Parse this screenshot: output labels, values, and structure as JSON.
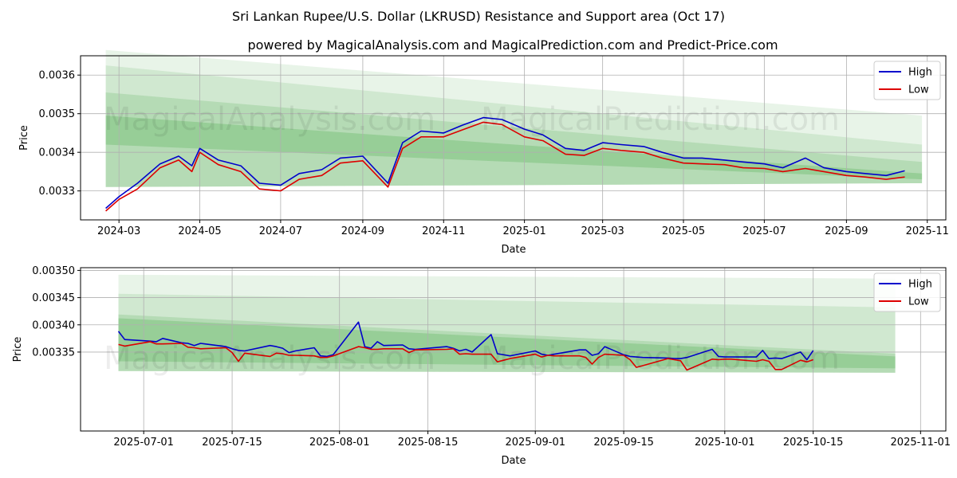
{
  "title": "Sri Lankan Rupee/U.S. Dollar (LKRUSD) Resistance and Support area (Oct 17)",
  "subtitle": "powered by MagicalAnalysis.com and MagicalPrediction.com and Predict-Price.com",
  "watermarks": [
    "MagicalAnalysis.com",
    "MagicalPrediction.com"
  ],
  "colors": {
    "high": "#0000cc",
    "low": "#dd0000",
    "band": "#2e9e2e",
    "grid": "#b0b0b0"
  },
  "chart_data": [
    {
      "type": "line",
      "name": "top-chart",
      "xlabel": "Date",
      "ylabel": "Price",
      "xlim": [
        "2024-02-01",
        "2025-11-15"
      ],
      "ylim": [
        0.003225,
        0.00365
      ],
      "xticks": [
        "2024-03",
        "2024-05",
        "2024-07",
        "2024-09",
        "2024-11",
        "2025-01",
        "2025-03",
        "2025-05",
        "2025-07",
        "2025-09",
        "2025-11"
      ],
      "xtick_dates": [
        "2024-03-01",
        "2024-05-01",
        "2024-07-01",
        "2024-09-01",
        "2024-11-01",
        "2025-01-01",
        "2025-03-01",
        "2025-05-01",
        "2025-07-01",
        "2025-09-01",
        "2025-11-01"
      ],
      "yticks": [
        0.0033,
        0.0034,
        0.0035,
        0.0036
      ],
      "ytick_labels": [
        "0.0033",
        "0.0034",
        "0.0035",
        "0.0036"
      ],
      "legend": {
        "position": "top-right",
        "entries": [
          "High",
          "Low"
        ]
      },
      "bands": [
        {
          "x": [
            "2024-02-20",
            "2025-10-28"
          ],
          "top": [
            0.003665,
            0.003495
          ],
          "bottom": [
            0.00331,
            0.00332
          ],
          "opacity": 0.11
        },
        {
          "x": [
            "2024-02-20",
            "2025-10-28"
          ],
          "top": [
            0.003625,
            0.00342
          ],
          "bottom": [
            0.00331,
            0.00332
          ],
          "opacity": 0.13
        },
        {
          "x": [
            "2024-02-20",
            "2025-10-28"
          ],
          "top": [
            0.003555,
            0.003375
          ],
          "bottom": [
            0.00331,
            0.00332
          ],
          "opacity": 0.16
        },
        {
          "x": [
            "2024-02-20",
            "2025-10-28"
          ],
          "top": [
            0.003495,
            0.003345
          ],
          "bottom": [
            0.00342,
            0.00333
          ],
          "opacity": 0.22
        }
      ],
      "series": [
        {
          "name": "High",
          "color": "#0000cc",
          "x": [
            "2024-02-20",
            "2024-03-01",
            "2024-03-15",
            "2024-04-01",
            "2024-04-15",
            "2024-04-25",
            "2024-05-01",
            "2024-05-15",
            "2024-06-01",
            "2024-06-15",
            "2024-07-01",
            "2024-07-15",
            "2024-08-01",
            "2024-08-15",
            "2024-09-01",
            "2024-09-20",
            "2024-10-01",
            "2024-10-15",
            "2024-11-01",
            "2024-11-15",
            "2024-12-01",
            "2024-12-15",
            "2025-01-01",
            "2025-01-15",
            "2025-02-01",
            "2025-02-15",
            "2025-03-01",
            "2025-03-15",
            "2025-04-01",
            "2025-04-15",
            "2025-05-01",
            "2025-05-15",
            "2025-06-01",
            "2025-06-15",
            "2025-07-01",
            "2025-07-15",
            "2025-08-01",
            "2025-08-15",
            "2025-09-01",
            "2025-09-15",
            "2025-10-01",
            "2025-10-15"
          ],
          "values": [
            0.003255,
            0.003285,
            0.00332,
            0.00337,
            0.00339,
            0.003365,
            0.00341,
            0.00338,
            0.003365,
            0.00332,
            0.003315,
            0.003345,
            0.003355,
            0.003385,
            0.00339,
            0.00332,
            0.003425,
            0.003455,
            0.00345,
            0.00347,
            0.00349,
            0.003485,
            0.00346,
            0.003445,
            0.00341,
            0.003405,
            0.003425,
            0.00342,
            0.003415,
            0.0034,
            0.003385,
            0.003385,
            0.00338,
            0.003375,
            0.00337,
            0.00336,
            0.003385,
            0.00336,
            0.00335,
            0.003345,
            0.00334,
            0.003352
          ]
        },
        {
          "name": "Low",
          "color": "#dd0000",
          "x": [
            "2024-02-20",
            "2024-03-01",
            "2024-03-15",
            "2024-04-01",
            "2024-04-15",
            "2024-04-25",
            "2024-05-01",
            "2024-05-15",
            "2024-06-01",
            "2024-06-15",
            "2024-07-01",
            "2024-07-15",
            "2024-08-01",
            "2024-08-15",
            "2024-09-01",
            "2024-09-20",
            "2024-10-01",
            "2024-10-15",
            "2024-11-01",
            "2024-11-15",
            "2024-12-01",
            "2024-12-15",
            "2025-01-01",
            "2025-01-15",
            "2025-02-01",
            "2025-02-15",
            "2025-03-01",
            "2025-03-15",
            "2025-04-01",
            "2025-04-15",
            "2025-05-01",
            "2025-05-15",
            "2025-06-01",
            "2025-06-15",
            "2025-07-01",
            "2025-07-15",
            "2025-08-01",
            "2025-08-15",
            "2025-09-01",
            "2025-09-15",
            "2025-10-01",
            "2025-10-15"
          ],
          "values": [
            0.003248,
            0.003278,
            0.003305,
            0.00336,
            0.00338,
            0.00335,
            0.0034,
            0.003368,
            0.00335,
            0.003305,
            0.0033,
            0.00333,
            0.00334,
            0.003372,
            0.003378,
            0.00331,
            0.00341,
            0.00344,
            0.00344,
            0.003458,
            0.003478,
            0.003472,
            0.00344,
            0.00343,
            0.003395,
            0.003392,
            0.00341,
            0.003405,
            0.0034,
            0.003385,
            0.003372,
            0.00337,
            0.003368,
            0.00336,
            0.003358,
            0.00335,
            0.003358,
            0.00335,
            0.00334,
            0.003336,
            0.00333,
            0.003336
          ]
        }
      ]
    },
    {
      "type": "line",
      "name": "bottom-chart",
      "xlabel": "Date",
      "ylabel": "Price",
      "xlim": [
        "2025-06-21",
        "2025-11-05"
      ],
      "ylim": [
        0.003205,
        0.003505
      ],
      "xticks": [
        "2025-07-01",
        "2025-07-15",
        "2025-08-01",
        "2025-08-15",
        "2025-09-01",
        "2025-09-15",
        "2025-10-01",
        "2025-10-15",
        "2025-11-01"
      ],
      "xtick_dates": [
        "2025-07-01",
        "2025-07-15",
        "2025-08-01",
        "2025-08-15",
        "2025-09-01",
        "2025-09-15",
        "2025-10-01",
        "2025-10-15",
        "2025-11-01"
      ],
      "yticks": [
        0.00335,
        0.0034,
        0.00345,
        0.0035
      ],
      "ytick_labels": [
        "0.00335",
        "0.00340",
        "0.00345",
        "0.00350"
      ],
      "legend": {
        "position": "top-right",
        "entries": [
          "High",
          "Low"
        ]
      },
      "bands": [
        {
          "x": [
            "2025-06-27",
            "2025-10-28"
          ],
          "top": [
            0.003492,
            0.003485
          ],
          "bottom": [
            0.003315,
            0.003312
          ],
          "opacity": 0.11
        },
        {
          "x": [
            "2025-06-27",
            "2025-10-28"
          ],
          "top": [
            0.003457,
            0.003432
          ],
          "bottom": [
            0.003315,
            0.003312
          ],
          "opacity": 0.13
        },
        {
          "x": [
            "2025-06-27",
            "2025-10-28"
          ],
          "top": [
            0.003419,
            0.003347
          ],
          "bottom": [
            0.003315,
            0.003312
          ],
          "opacity": 0.16
        },
        {
          "x": [
            "2025-06-27",
            "2025-10-28"
          ],
          "top": [
            0.003412,
            0.003342
          ],
          "bottom": [
            0.003333,
            0.00332
          ],
          "opacity": 0.22
        }
      ],
      "series": [
        {
          "name": "High",
          "color": "#0000cc",
          "x": [
            "2025-06-27",
            "2025-06-28",
            "2025-07-02",
            "2025-07-03",
            "2025-07-04",
            "2025-07-07",
            "2025-07-08",
            "2025-07-09",
            "2025-07-10",
            "2025-07-14",
            "2025-07-15",
            "2025-07-16",
            "2025-07-17",
            "2025-07-21",
            "2025-07-22",
            "2025-07-23",
            "2025-07-24",
            "2025-07-25",
            "2025-07-28",
            "2025-07-29",
            "2025-07-30",
            "2025-07-31",
            "2025-08-04",
            "2025-08-05",
            "2025-08-06",
            "2025-08-07",
            "2025-08-08",
            "2025-08-11",
            "2025-08-12",
            "2025-08-13",
            "2025-08-18",
            "2025-08-19",
            "2025-08-20",
            "2025-08-21",
            "2025-08-22",
            "2025-08-25",
            "2025-08-26",
            "2025-08-28",
            "2025-09-01",
            "2025-09-02",
            "2025-09-03",
            "2025-09-04",
            "2025-09-08",
            "2025-09-09",
            "2025-09-10",
            "2025-09-11",
            "2025-09-12",
            "2025-09-15",
            "2025-09-16",
            "2025-09-17",
            "2025-09-18",
            "2025-09-22",
            "2025-09-23",
            "2025-09-24",
            "2025-09-25",
            "2025-09-29",
            "2025-09-30",
            "2025-10-01",
            "2025-10-02",
            "2025-10-06",
            "2025-10-07",
            "2025-10-08",
            "2025-10-09",
            "2025-10-10",
            "2025-10-13",
            "2025-10-14",
            "2025-10-15"
          ],
          "values": [
            0.003388,
            0.003373,
            0.00337,
            0.003369,
            0.003375,
            0.003367,
            0.003366,
            0.003362,
            0.003366,
            0.00336,
            0.003356,
            0.003353,
            0.003352,
            0.003362,
            0.00336,
            0.003357,
            0.003349,
            0.003352,
            0.003358,
            0.003343,
            0.003342,
            0.003345,
            0.003405,
            0.00336,
            0.003357,
            0.003369,
            0.003362,
            0.003363,
            0.003356,
            0.003355,
            0.00336,
            0.003357,
            0.003352,
            0.003355,
            0.00335,
            0.003382,
            0.003347,
            0.003343,
            0.003352,
            0.003346,
            0.003344,
            0.003346,
            0.003354,
            0.003354,
            0.003344,
            0.003347,
            0.00336,
            0.003345,
            0.003342,
            0.003341,
            0.00334,
            0.003339,
            0.003338,
            0.003338,
            0.00334,
            0.003355,
            0.003342,
            0.003341,
            0.003341,
            0.003341,
            0.003353,
            0.003338,
            0.003339,
            0.003338,
            0.00335,
            0.003336,
            0.003353
          ]
        },
        {
          "name": "Low",
          "color": "#dd0000",
          "x": [
            "2025-06-27",
            "2025-06-28",
            "2025-07-02",
            "2025-07-03",
            "2025-07-04",
            "2025-07-07",
            "2025-07-08",
            "2025-07-09",
            "2025-07-10",
            "2025-07-14",
            "2025-07-15",
            "2025-07-16",
            "2025-07-17",
            "2025-07-21",
            "2025-07-22",
            "2025-07-23",
            "2025-07-24",
            "2025-07-25",
            "2025-07-28",
            "2025-07-29",
            "2025-07-30",
            "2025-07-31",
            "2025-08-04",
            "2025-08-05",
            "2025-08-06",
            "2025-08-07",
            "2025-08-08",
            "2025-08-11",
            "2025-08-12",
            "2025-08-13",
            "2025-08-18",
            "2025-08-19",
            "2025-08-20",
            "2025-08-21",
            "2025-08-22",
            "2025-08-25",
            "2025-08-26",
            "2025-08-28",
            "2025-09-01",
            "2025-09-02",
            "2025-09-03",
            "2025-09-04",
            "2025-09-08",
            "2025-09-09",
            "2025-09-10",
            "2025-09-11",
            "2025-09-12",
            "2025-09-15",
            "2025-09-16",
            "2025-09-17",
            "2025-09-18",
            "2025-09-22",
            "2025-09-23",
            "2025-09-24",
            "2025-09-25",
            "2025-09-29",
            "2025-09-30",
            "2025-10-01",
            "2025-10-02",
            "2025-10-06",
            "2025-10-07",
            "2025-10-08",
            "2025-10-09",
            "2025-10-10",
            "2025-10-13",
            "2025-10-14",
            "2025-10-15"
          ],
          "values": [
            0.003364,
            0.003361,
            0.003369,
            0.003365,
            0.003365,
            0.003366,
            0.003359,
            0.003358,
            0.003356,
            0.003358,
            0.003349,
            0.003333,
            0.003348,
            0.003342,
            0.003348,
            0.003347,
            0.003344,
            0.003344,
            0.003343,
            0.00334,
            0.00334,
            0.003343,
            0.00336,
            0.003358,
            0.003355,
            0.003355,
            0.003356,
            0.003356,
            0.003349,
            0.003354,
            0.003355,
            0.003356,
            0.003346,
            0.003347,
            0.003346,
            0.003346,
            0.003332,
            0.003338,
            0.003346,
            0.003341,
            0.003344,
            0.003343,
            0.003343,
            0.00334,
            0.003328,
            0.00334,
            0.003346,
            0.003344,
            0.003336,
            0.003322,
            0.003325,
            0.003338,
            0.003336,
            0.003334,
            0.003317,
            0.003337,
            0.003336,
            0.003337,
            0.003337,
            0.003333,
            0.003336,
            0.003333,
            0.003318,
            0.003318,
            0.003335,
            0.003332,
            0.003336
          ]
        }
      ]
    }
  ]
}
